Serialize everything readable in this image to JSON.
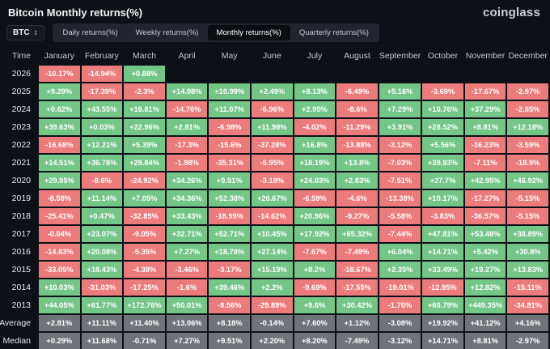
{
  "header": {
    "title": "Bitcoin Monthly returns(%)",
    "logo": "coinglass"
  },
  "toolbar": {
    "symbol": "BTC",
    "tabs": [
      {
        "label": "Daily returns(%)",
        "active": false
      },
      {
        "label": "Weekly returns(%)",
        "active": false
      },
      {
        "label": "Monthly returns(%)",
        "active": true
      },
      {
        "label": "Quarterly returns(%)",
        "active": false
      }
    ]
  },
  "colors": {
    "positive": "#74c687",
    "negative": "#ec7b7b",
    "neutral": "#6f737a",
    "background": "#0d1016"
  },
  "chart_data": {
    "type": "heatmap",
    "title": "Bitcoin Monthly returns(%)",
    "legend_note": "green = positive monthly return, red = negative, gray = summary rows",
    "columns": [
      "Time",
      "January",
      "February",
      "March",
      "April",
      "May",
      "June",
      "July",
      "August",
      "September",
      "October",
      "November",
      "December"
    ],
    "rows": [
      {
        "label": "2026",
        "type": "year",
        "values": [
          "-10.17%",
          "-14.94%",
          "+0.88%",
          null,
          null,
          null,
          null,
          null,
          null,
          null,
          null,
          null
        ]
      },
      {
        "label": "2025",
        "type": "year",
        "values": [
          "+9.29%",
          "-17.39%",
          "-2.3%",
          "+14.08%",
          "+10.99%",
          "+2.49%",
          "+8.13%",
          "-6.49%",
          "+5.16%",
          "-3.69%",
          "-17.67%",
          "-2.97%"
        ]
      },
      {
        "label": "2024",
        "type": "year",
        "values": [
          "+0.62%",
          "+43.55%",
          "+16.81%",
          "-14.76%",
          "+11.07%",
          "-6.96%",
          "+2.95%",
          "-8.6%",
          "+7.29%",
          "+10.76%",
          "+37.29%",
          "-2.85%"
        ]
      },
      {
        "label": "2023",
        "type": "year",
        "values": [
          "+39.63%",
          "+0.03%",
          "+22.96%",
          "+2.81%",
          "-6.98%",
          "+11.98%",
          "-4.02%",
          "-11.29%",
          "+3.91%",
          "+28.52%",
          "+8.81%",
          "+12.18%"
        ]
      },
      {
        "label": "2022",
        "type": "year",
        "values": [
          "-16.68%",
          "+12.21%",
          "+5.39%",
          "-17.3%",
          "-15.6%",
          "-37.28%",
          "+16.8%",
          "-13.88%",
          "-3.12%",
          "+5.56%",
          "-16.23%",
          "-3.59%"
        ]
      },
      {
        "label": "2021",
        "type": "year",
        "values": [
          "+14.51%",
          "+36.78%",
          "+29.84%",
          "-1.98%",
          "-35.31%",
          "-5.95%",
          "+18.19%",
          "+13.8%",
          "-7.03%",
          "+39.93%",
          "-7.11%",
          "-18.9%"
        ]
      },
      {
        "label": "2020",
        "type": "year",
        "values": [
          "+29.95%",
          "-8.6%",
          "-24.92%",
          "+34.26%",
          "+9.51%",
          "-3.18%",
          "+24.03%",
          "+2.83%",
          "-7.51%",
          "+27.7%",
          "+42.95%",
          "+46.92%"
        ]
      },
      {
        "label": "2019",
        "type": "year",
        "values": [
          "-8.58%",
          "+11.14%",
          "+7.05%",
          "+34.36%",
          "+52.38%",
          "+26.67%",
          "-6.59%",
          "-4.6%",
          "-13.38%",
          "+10.17%",
          "-17.27%",
          "-5.15%"
        ]
      },
      {
        "label": "2018",
        "type": "year",
        "values": [
          "-25.41%",
          "+0.47%",
          "-32.85%",
          "+33.43%",
          "-18.99%",
          "-14.62%",
          "+20.96%",
          "-9.27%",
          "-5.58%",
          "-3.83%",
          "-36.57%",
          "-5.15%"
        ]
      },
      {
        "label": "2017",
        "type": "year",
        "values": [
          "-0.04%",
          "+23.07%",
          "-9.05%",
          "+32.71%",
          "+52.71%",
          "+10.45%",
          "+17.92%",
          "+65.32%",
          "-7.44%",
          "+47.81%",
          "+53.48%",
          "+38.89%"
        ]
      },
      {
        "label": "2016",
        "type": "year",
        "values": [
          "-14.83%",
          "+20.08%",
          "-5.35%",
          "+7.27%",
          "+18.78%",
          "+27.14%",
          "-7.67%",
          "-7.49%",
          "+6.04%",
          "+14.71%",
          "+5.42%",
          "+30.8%"
        ]
      },
      {
        "label": "2015",
        "type": "year",
        "values": [
          "-33.05%",
          "+18.43%",
          "-4.38%",
          "-3.46%",
          "-3.17%",
          "+15.19%",
          "+8.2%",
          "-18.67%",
          "+2.35%",
          "+33.49%",
          "+19.27%",
          "+13.83%"
        ]
      },
      {
        "label": "2014",
        "type": "year",
        "values": [
          "+10.03%",
          "-31.03%",
          "-17.25%",
          "-1.6%",
          "+39.46%",
          "+2.2%",
          "-9.69%",
          "-17.55%",
          "-19.01%",
          "-12.95%",
          "+12.82%",
          "-15.11%"
        ]
      },
      {
        "label": "2013",
        "type": "year",
        "values": [
          "+44.05%",
          "+61.77%",
          "+172.76%",
          "+50.01%",
          "-8.56%",
          "-29.89%",
          "+9.6%",
          "+30.42%",
          "-1.76%",
          "+60.79%",
          "+449.35%",
          "-34.81%"
        ]
      },
      {
        "label": "Average",
        "type": "summary",
        "values": [
          "+2.81%",
          "+11.11%",
          "+11.40%",
          "+13.06%",
          "+8.18%",
          "-0.14%",
          "+7.60%",
          "+1.12%",
          "-3.08%",
          "+19.92%",
          "+41.12%",
          "+4.16%"
        ]
      },
      {
        "label": "Median",
        "type": "summary",
        "values": [
          "+0.29%",
          "+11.68%",
          "-0.71%",
          "+7.27%",
          "+9.51%",
          "+2.20%",
          "+8.20%",
          "-7.49%",
          "-3.12%",
          "+14.71%",
          "+8.81%",
          "-2.97%"
        ]
      }
    ]
  }
}
